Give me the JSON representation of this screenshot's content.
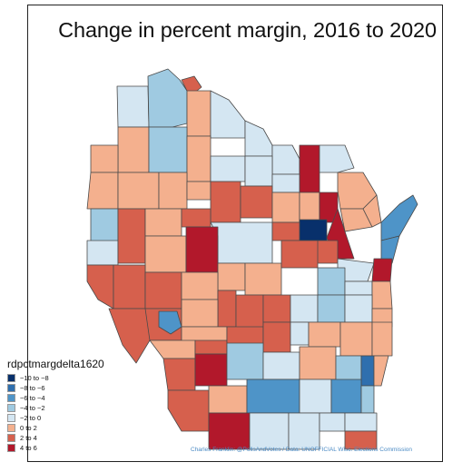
{
  "title": "Change in percent margin, 2016 to 2020",
  "legend": {
    "title": "rdpctmargdelta1620",
    "items": [
      {
        "label": "−10 to −8",
        "color": "#08306b"
      },
      {
        "label": "−8 to −6",
        "color": "#2f6fae"
      },
      {
        "label": "−6 to −4",
        "color": "#4e94c8"
      },
      {
        "label": "−4 to −2",
        "color": "#9fcae1"
      },
      {
        "label": "−2 to 0",
        "color": "#d4e6f2"
      },
      {
        "label": "0 to 2",
        "color": "#f4b08e"
      },
      {
        "label": "2 to 4",
        "color": "#d6604d"
      },
      {
        "label": "4 to 6",
        "color": "#b2182b"
      }
    ]
  },
  "credit": "Charles Franklin: @PollsAndVotes / Data: UNOFFICIAL Wisc. Elections Commission",
  "colors": {
    "border": "#4a4a4a",
    "frame": "#222222"
  }
}
